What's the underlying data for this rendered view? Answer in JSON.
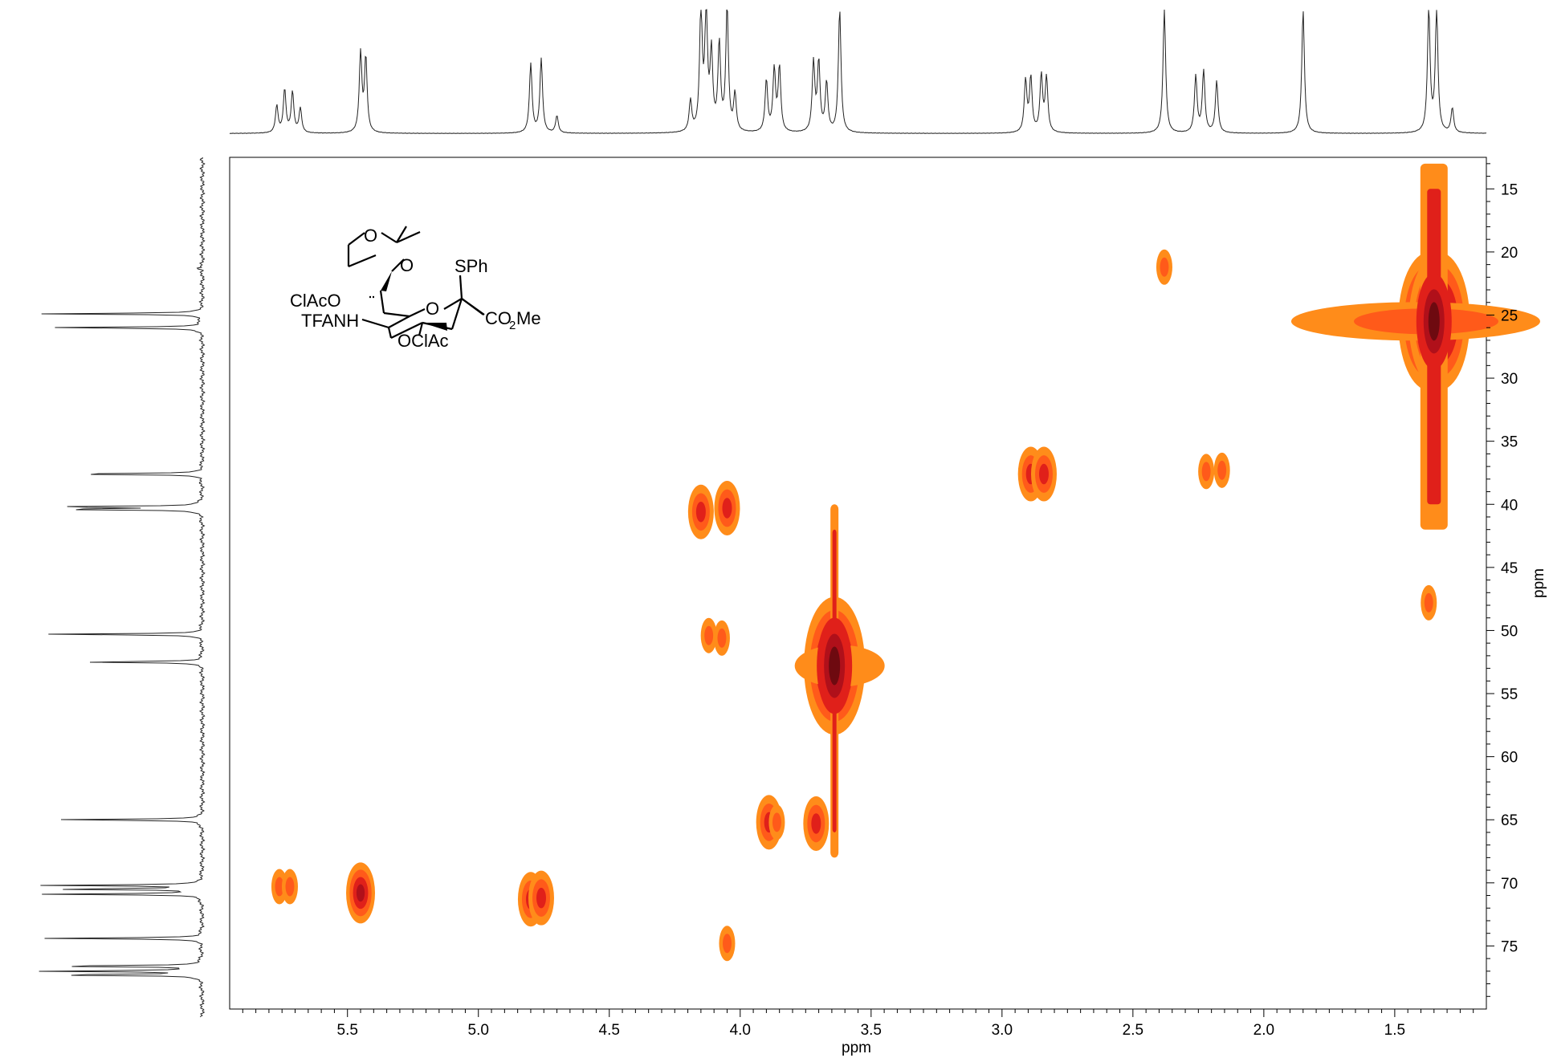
{
  "chart_data": {
    "type": "heatmap",
    "title": "",
    "xlabel": "ppm",
    "ylabel": "ppm",
    "xlim": [
      5.95,
      1.15
    ],
    "ylim": [
      12.5,
      80.0
    ],
    "x_ticks": [
      "5.5",
      "5.0",
      "4.5",
      "4.0",
      "3.5",
      "3.0",
      "2.5",
      "2.0",
      "1.5"
    ],
    "y_ticks": [
      "15",
      "20",
      "25",
      "30",
      "35",
      "40",
      "45",
      "50",
      "55",
      "60",
      "65",
      "70",
      "75"
    ],
    "contour_colors": [
      "#ff8c1a",
      "#ff5a1a",
      "#e0201a",
      "#b0101a",
      "#6e0a10"
    ],
    "cross_peaks": [
      {
        "h": 5.76,
        "c": 70.3,
        "level": 1
      },
      {
        "h": 5.72,
        "c": 70.3,
        "level": 1
      },
      {
        "h": 5.45,
        "c": 70.8,
        "level": 3
      },
      {
        "h": 4.8,
        "c": 71.3,
        "level": 2
      },
      {
        "h": 4.76,
        "c": 71.2,
        "level": 2
      },
      {
        "h": 4.15,
        "c": 40.6,
        "level": 2
      },
      {
        "h": 4.05,
        "c": 40.3,
        "level": 2
      },
      {
        "h": 4.12,
        "c": 50.4,
        "level": 1
      },
      {
        "h": 4.07,
        "c": 50.6,
        "level": 1
      },
      {
        "h": 4.05,
        "c": 74.8,
        "level": 1
      },
      {
        "h": 3.89,
        "c": 65.2,
        "level": 2
      },
      {
        "h": 3.86,
        "c": 65.2,
        "level": 1
      },
      {
        "h": 3.71,
        "c": 65.3,
        "level": 2
      },
      {
        "h": 3.64,
        "c": 52.8,
        "level": 4
      },
      {
        "h": 2.89,
        "c": 37.6,
        "level": 2
      },
      {
        "h": 2.84,
        "c": 37.6,
        "level": 2
      },
      {
        "h": 2.38,
        "c": 21.2,
        "level": 1
      },
      {
        "h": 2.22,
        "c": 37.4,
        "level": 1
      },
      {
        "h": 2.16,
        "c": 37.3,
        "level": 1
      },
      {
        "h": 1.37,
        "c": 25.5,
        "level": 4
      },
      {
        "h": 1.33,
        "c": 25.5,
        "level": 4
      },
      {
        "h": 1.37,
        "c": 47.8,
        "level": 1
      }
    ],
    "projection_1h": [
      {
        "ppm": 5.77,
        "height": 0.22
      },
      {
        "ppm": 5.74,
        "height": 0.35
      },
      {
        "ppm": 5.71,
        "height": 0.33
      },
      {
        "ppm": 5.68,
        "height": 0.2
      },
      {
        "ppm": 5.45,
        "height": 0.64
      },
      {
        "ppm": 5.43,
        "height": 0.6
      },
      {
        "ppm": 4.8,
        "height": 0.56
      },
      {
        "ppm": 4.76,
        "height": 0.6
      },
      {
        "ppm": 4.7,
        "height": 0.14
      },
      {
        "ppm": 4.19,
        "height": 0.25
      },
      {
        "ppm": 4.15,
        "height": 1.0
      },
      {
        "ppm": 4.13,
        "height": 0.96
      },
      {
        "ppm": 4.11,
        "height": 0.62
      },
      {
        "ppm": 4.08,
        "height": 0.7
      },
      {
        "ppm": 4.05,
        "height": 1.0
      },
      {
        "ppm": 4.02,
        "height": 0.3
      },
      {
        "ppm": 3.9,
        "height": 0.42
      },
      {
        "ppm": 3.87,
        "height": 0.5
      },
      {
        "ppm": 3.85,
        "height": 0.52
      },
      {
        "ppm": 3.72,
        "height": 0.56
      },
      {
        "ppm": 3.7,
        "height": 0.56
      },
      {
        "ppm": 3.67,
        "height": 0.4
      },
      {
        "ppm": 3.62,
        "height": 1.0
      },
      {
        "ppm": 2.91,
        "height": 0.42
      },
      {
        "ppm": 2.89,
        "height": 0.44
      },
      {
        "ppm": 2.85,
        "height": 0.46
      },
      {
        "ppm": 2.83,
        "height": 0.44
      },
      {
        "ppm": 2.38,
        "height": 1.0
      },
      {
        "ppm": 2.26,
        "height": 0.46
      },
      {
        "ppm": 2.23,
        "height": 0.5
      },
      {
        "ppm": 2.18,
        "height": 0.42
      },
      {
        "ppm": 1.85,
        "height": 1.0
      },
      {
        "ppm": 1.37,
        "height": 1.0
      },
      {
        "ppm": 1.34,
        "height": 1.0
      },
      {
        "ppm": 1.28,
        "height": 0.2
      }
    ],
    "projection_13c": [
      {
        "ppm": 21.3,
        "height": 0.05
      },
      {
        "ppm": 24.9,
        "height": 0.98
      },
      {
        "ppm": 26.0,
        "height": 0.96
      },
      {
        "ppm": 37.6,
        "height": 0.9
      },
      {
        "ppm": 40.2,
        "height": 0.98
      },
      {
        "ppm": 40.4,
        "height": 0.95
      },
      {
        "ppm": 50.3,
        "height": 0.96
      },
      {
        "ppm": 52.5,
        "height": 0.76
      },
      {
        "ppm": 65.0,
        "height": 0.94
      },
      {
        "ppm": 70.2,
        "height": 0.96
      },
      {
        "ppm": 70.5,
        "height": 0.94
      },
      {
        "ppm": 70.9,
        "height": 0.96
      },
      {
        "ppm": 74.4,
        "height": 0.96
      },
      {
        "ppm": 76.6,
        "height": 1.0
      },
      {
        "ppm": 77.0,
        "height": 1.0
      },
      {
        "ppm": 77.3,
        "height": 1.0
      }
    ]
  },
  "molecule": {
    "labels": {
      "o_ring_top": "O",
      "o_ring_right": "O",
      "sph": "SPh",
      "clac_o": "ClAcO",
      "tfanh": "TFANH",
      "o_ring": "O",
      "co2me_1": "CO",
      "co2me_sub": "2",
      "co2me_2": "Me",
      "oclac": "OClAc"
    }
  }
}
